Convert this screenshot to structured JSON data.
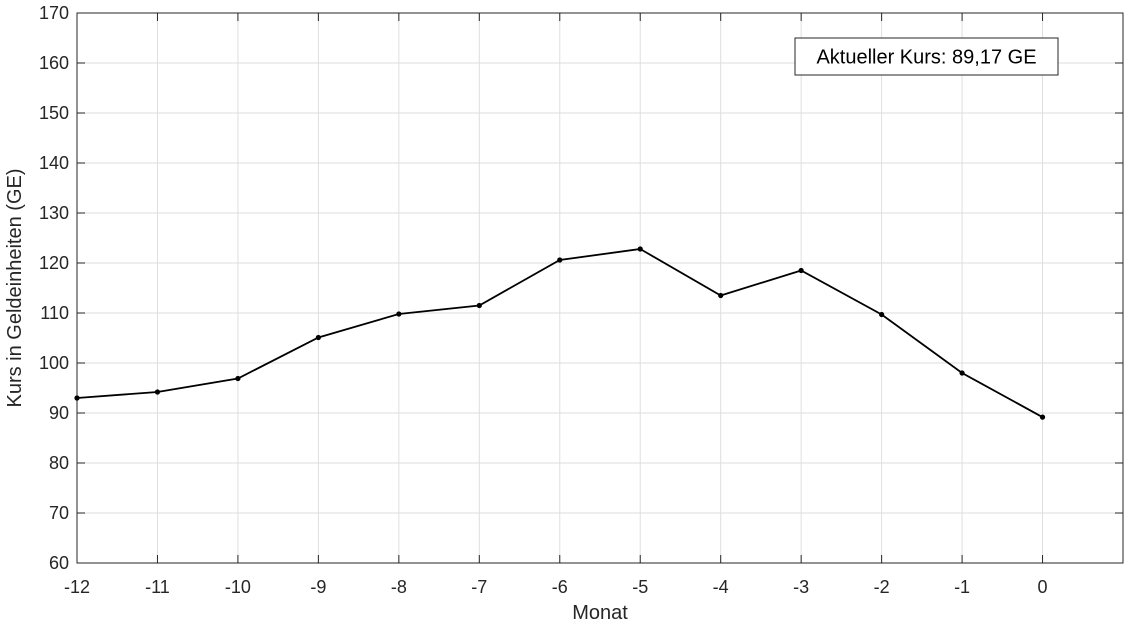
{
  "chart_data": {
    "type": "line",
    "title": "",
    "xlabel": "Monat",
    "ylabel": "Kurs in Geldeinheiten (GE)",
    "xlim": [
      -12,
      1
    ],
    "ylim": [
      60,
      170
    ],
    "xticks": [
      -12,
      -11,
      -10,
      -9,
      -8,
      -7,
      -6,
      -5,
      -4,
      -3,
      -2,
      -1,
      0
    ],
    "yticks": [
      60,
      70,
      80,
      90,
      100,
      110,
      120,
      130,
      140,
      150,
      160,
      170
    ],
    "grid": true,
    "series": [
      {
        "x": [
          -12,
          -11,
          -10,
          -9,
          -8,
          -7,
          -6,
          -5,
          -4,
          -3,
          -2,
          -1,
          0
        ],
        "y": [
          93.0,
          94.2,
          96.9,
          105.1,
          109.8,
          111.5,
          120.6,
          122.8,
          113.5,
          118.5,
          109.7,
          98.0,
          89.17
        ],
        "color": "#000000"
      }
    ],
    "annotation": {
      "text": "Aktueller Kurs: 89,17 GE",
      "position": "top-right"
    }
  }
}
